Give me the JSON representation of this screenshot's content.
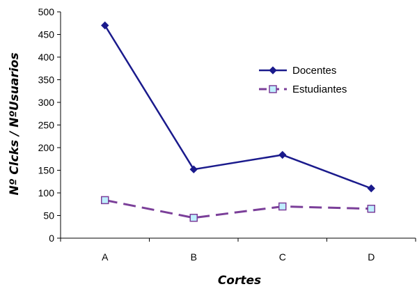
{
  "chart_data": {
    "type": "line",
    "title": "",
    "xlabel": "Cortes",
    "ylabel": "Nº Clcks / NºUsuarios",
    "categories": [
      "A",
      "B",
      "C",
      "D"
    ],
    "ylim": [
      0,
      500
    ],
    "yticks": [
      0,
      50,
      100,
      150,
      200,
      250,
      300,
      350,
      400,
      450,
      500
    ],
    "grid": false,
    "legend_position": "top-right (inside plot)",
    "series": [
      {
        "name": "Docentes",
        "values": [
          470,
          152,
          184,
          110
        ],
        "color": "#1a1a8c",
        "line_style": "solid",
        "marker": "diamond"
      },
      {
        "name": "Estudiantes",
        "values": [
          84,
          45,
          70,
          65
        ],
        "color": "#7b3f99",
        "line_style": "dashed",
        "marker": "square",
        "marker_fill": "#bfefff"
      }
    ]
  }
}
